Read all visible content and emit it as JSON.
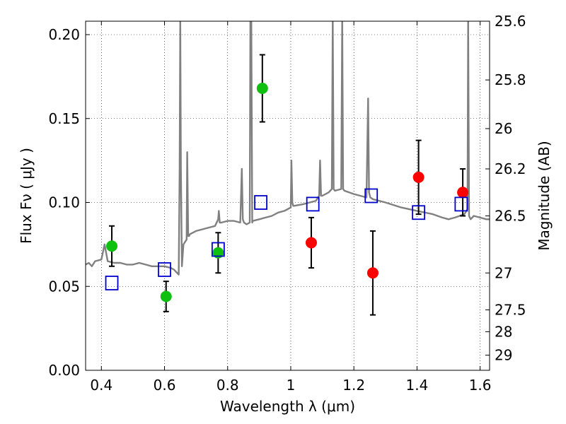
{
  "chart_data": {
    "type": "scatter",
    "xlabel": "Wavelength  λ (μm)",
    "ylabel": "Flux  Fν  ( μJy )",
    "y2label": "Magnitude (AB)",
    "xlim": [
      0.35,
      1.63
    ],
    "ylim": [
      0.0,
      0.208
    ],
    "grid": true,
    "x_ticks": [
      0.4,
      0.6,
      0.8,
      1.0,
      1.2,
      1.4,
      1.6
    ],
    "x_tick_labels": [
      "0.4",
      "0.6",
      "0.8",
      "1",
      "1.2",
      "1.4",
      "1.6"
    ],
    "y_ticks": [
      0.0,
      0.05,
      0.1,
      0.15,
      0.2
    ],
    "y_tick_labels": [
      "0.00",
      "0.05",
      "0.10",
      "0.15",
      "0.20"
    ],
    "y2_ticks": [
      {
        "label": "25.6",
        "flux": 0.208
      },
      {
        "label": "25.8",
        "flux": 0.173
      },
      {
        "label": "26",
        "flux": 0.144
      },
      {
        "label": "26.2",
        "flux": 0.12
      },
      {
        "label": "26.5",
        "flux": 0.092
      },
      {
        "label": "27",
        "flux": 0.058
      },
      {
        "label": "27.5",
        "flux": 0.036
      },
      {
        "label": "28",
        "flux": 0.023
      },
      {
        "label": "29",
        "flux": 0.009
      }
    ],
    "series": [
      {
        "kind": "line",
        "color": "#808080",
        "x": [
          0.35,
          0.36,
          0.37,
          0.38,
          0.4,
          0.41,
          0.42,
          0.44,
          0.46,
          0.48,
          0.5,
          0.52,
          0.54,
          0.56,
          0.58,
          0.6,
          0.62,
          0.63,
          0.64,
          0.645,
          0.648,
          0.65,
          0.652,
          0.655,
          0.66,
          0.67,
          0.672,
          0.675,
          0.678,
          0.68,
          0.7,
          0.72,
          0.74,
          0.76,
          0.77,
          0.772,
          0.775,
          0.78,
          0.8,
          0.82,
          0.84,
          0.845,
          0.848,
          0.852,
          0.86,
          0.87,
          0.872,
          0.875,
          0.878,
          0.88,
          0.9,
          0.92,
          0.94,
          0.96,
          0.98,
          1.0,
          1.002,
          1.005,
          1.008,
          1.01,
          1.04,
          1.06,
          1.08,
          1.09,
          1.093,
          1.096,
          1.1,
          1.12,
          1.13,
          1.133,
          1.136,
          1.14,
          1.16,
          1.163,
          1.166,
          1.17,
          1.2,
          1.22,
          1.24,
          1.245,
          1.248,
          1.252,
          1.26,
          1.3,
          1.35,
          1.4,
          1.45,
          1.48,
          1.5,
          1.52,
          1.55,
          1.56,
          1.562,
          1.565,
          1.57,
          1.58,
          1.6,
          1.62,
          1.63
        ],
        "y": [
          0.063,
          0.064,
          0.062,
          0.065,
          0.066,
          0.075,
          0.065,
          0.064,
          0.064,
          0.063,
          0.063,
          0.064,
          0.063,
          0.062,
          0.062,
          0.062,
          0.061,
          0.06,
          0.058,
          0.057,
          0.12,
          0.21,
          0.12,
          0.062,
          0.075,
          0.078,
          0.13,
          0.08,
          0.08,
          0.081,
          0.083,
          0.084,
          0.085,
          0.086,
          0.09,
          0.095,
          0.088,
          0.088,
          0.089,
          0.089,
          0.088,
          0.12,
          0.09,
          0.088,
          0.087,
          0.088,
          0.21,
          0.21,
          0.088,
          0.089,
          0.09,
          0.091,
          0.092,
          0.094,
          0.095,
          0.097,
          0.125,
          0.1,
          0.098,
          0.098,
          0.099,
          0.1,
          0.101,
          0.104,
          0.125,
          0.104,
          0.104,
          0.106,
          0.108,
          0.21,
          0.108,
          0.107,
          0.108,
          0.21,
          0.108,
          0.107,
          0.105,
          0.104,
          0.103,
          0.162,
          0.106,
          0.103,
          0.102,
          0.1,
          0.097,
          0.095,
          0.093,
          0.091,
          0.09,
          0.091,
          0.093,
          0.096,
          0.21,
          0.092,
          0.09,
          0.092,
          0.091,
          0.09,
          0.09
        ]
      },
      {
        "kind": "points",
        "marker": "circle",
        "color": "#10c010",
        "x": [
          0.433,
          0.605,
          0.77,
          0.91
        ],
        "y": [
          0.074,
          0.044,
          0.07,
          0.168
        ],
        "yerr": [
          0.012,
          0.009,
          0.012,
          0.02
        ]
      },
      {
        "kind": "points",
        "marker": "circle",
        "color": "#ff0000",
        "x": [
          1.065,
          1.26,
          1.405,
          1.545
        ],
        "y": [
          0.076,
          0.058,
          0.115,
          0.106
        ],
        "yerr": [
          0.015,
          0.025,
          0.022,
          0.014
        ]
      },
      {
        "kind": "points",
        "marker": "square",
        "color": "#0000cc",
        "x": [
          0.433,
          0.6,
          0.77,
          0.905,
          1.07,
          1.255,
          1.405,
          1.54
        ],
        "y": [
          0.052,
          0.06,
          0.072,
          0.1,
          0.099,
          0.104,
          0.094,
          0.099
        ]
      }
    ]
  }
}
